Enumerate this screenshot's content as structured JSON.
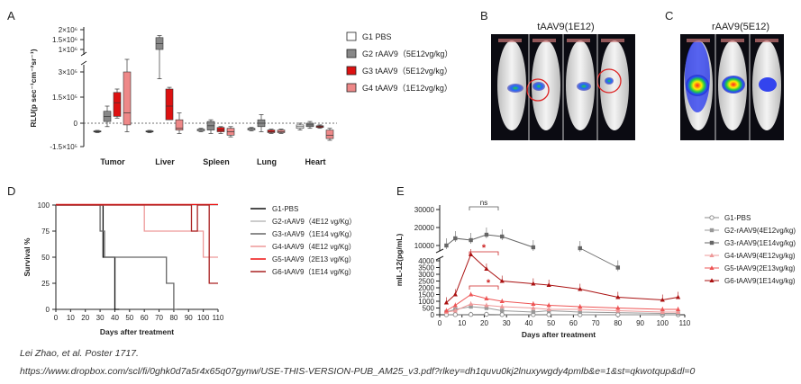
{
  "panels": {
    "A": "A",
    "B": "B",
    "C": "C",
    "D": "D",
    "E": "E"
  },
  "chart_data": [
    {
      "type": "box",
      "panel": "A",
      "ylabel": "RLU(p sec⁻¹cm⁻²sr⁻¹)",
      "yticks_upper": [
        "2×10⁶",
        "1.5×10⁶",
        "1×10⁶"
      ],
      "yticks_lower": [
        "3×10⁵",
        "1.5×10⁵",
        "0",
        "-1.5×10⁵"
      ],
      "categories": [
        "Tumor",
        "Liver",
        "Spleen",
        "Lung",
        "Heart"
      ],
      "series": [
        {
          "name": "G1 PBS",
          "color": "#ffffff",
          "boxes": [
            [
              -55000,
              -50000,
              -48000,
              -45000,
              -42000
            ],
            [
              -55000,
              -50000,
              -48000,
              -45000,
              -42000
            ],
            [
              -50000,
              -45000,
              -40000,
              -35000,
              -30000
            ],
            [
              -45000,
              -40000,
              -35000,
              -30000,
              -25000
            ],
            [
              -40000,
              -30000,
              -20000,
              -10000,
              0
            ]
          ]
        },
        {
          "name": "G2 rAAV9（5E12vg/kg）",
          "color": "#888888",
          "boxes": [
            [
              -20000,
              10000,
              40000,
              70000,
              100000
            ],
            [
              260000,
              1000000,
              1300000,
              1600000,
              1700000
            ],
            [
              -60000,
              -40000,
              -15000,
              10000,
              20000
            ],
            [
              -50000,
              -20000,
              0,
              20000,
              50000
            ],
            [
              -30000,
              -20000,
              -10000,
              0,
              10000
            ]
          ]
        },
        {
          "name": "G3 tAAV9（5E12vg/kg）",
          "color": "#dd1111",
          "boxes": [
            [
              30000,
              40000,
              120000,
              180000,
              200000
            ],
            [
              60000,
              20000,
              100000,
              200000,
              210000
            ],
            [
              -60000,
              -50000,
              -40000,
              -25000,
              -20000
            ],
            [
              -60000,
              -55000,
              -50000,
              -40000,
              -35000
            ],
            [
              -30000,
              -25000,
              -20000,
              -15000,
              -10000
            ]
          ]
        },
        {
          "name": "G4 tAAV9（1E12vg/kg）",
          "color": "#ee8888",
          "boxes": [
            [
              -50000,
              -10000,
              60000,
              300000,
              320000
            ],
            [
              -60000,
              -40000,
              -30000,
              20000,
              60000
            ],
            [
              -80000,
              -70000,
              -50000,
              -30000,
              -20000
            ],
            [
              -60000,
              -55000,
              -50000,
              -40000,
              -35000
            ],
            [
              -100000,
              -90000,
              -70000,
              -40000,
              -30000
            ]
          ]
        }
      ]
    },
    {
      "type": "line",
      "panel": "D",
      "title": "",
      "xlabel": "Days after treatment",
      "ylabel": "Survival %",
      "xlim": [
        0,
        110
      ],
      "ylim": [
        0,
        100
      ],
      "xticks": [
        0,
        10,
        20,
        30,
        40,
        50,
        60,
        70,
        80,
        90,
        100,
        110
      ],
      "yticks": [
        0,
        25,
        50,
        75,
        100
      ],
      "series": [
        {
          "name": "G1-PBS",
          "color": "#111111",
          "steps": [
            [
              0,
              100
            ],
            [
              32,
              100
            ],
            [
              32,
              50
            ],
            [
              40,
              50
            ],
            [
              40,
              0
            ],
            [
              43,
              0
            ]
          ]
        },
        {
          "name": "G2-rAAV9（4E12 vg/Kg）",
          "color": "#bbbbbb",
          "steps": [
            [
              0,
              100
            ],
            [
              110,
              100
            ]
          ]
        },
        {
          "name": "G3-rAAV9（1E14 vg/Kg）",
          "color": "#666666",
          "steps": [
            [
              0,
              100
            ],
            [
              30,
              100
            ],
            [
              30,
              75
            ],
            [
              33,
              75
            ],
            [
              33,
              50
            ],
            [
              75,
              50
            ],
            [
              75,
              25
            ],
            [
              80,
              25
            ],
            [
              80,
              0
            ],
            [
              82,
              0
            ]
          ]
        },
        {
          "name": "G4-tAAV9（4E12 vg/Kg）",
          "color": "#ee9999",
          "steps": [
            [
              0,
              100
            ],
            [
              60,
              100
            ],
            [
              60,
              75
            ],
            [
              100,
              75
            ],
            [
              100,
              50
            ],
            [
              110,
              50
            ]
          ]
        },
        {
          "name": "G5-tAAV9（2E13 vg/Kg）",
          "color": "#ee1111",
          "steps": [
            [
              0,
              100
            ],
            [
              110,
              100
            ]
          ]
        },
        {
          "name": "G6-tAAV9（1E14 vg/Kg）",
          "color": "#aa2222",
          "steps": [
            [
              0,
              100
            ],
            [
              92,
              100
            ],
            [
              92,
              75
            ],
            [
              96,
              75
            ],
            [
              96,
              100
            ],
            [
              104,
              100
            ],
            [
              104,
              25
            ],
            [
              110,
              25
            ]
          ]
        }
      ]
    },
    {
      "type": "line",
      "panel": "E",
      "xlabel": "Days after treatment",
      "ylabel": "mIL-12(pg/mL)",
      "xticks": [
        0,
        10,
        20,
        30,
        40,
        50,
        60,
        70,
        80,
        90,
        100,
        110
      ],
      "yticks_upper": [
        10000,
        20000,
        30000
      ],
      "yticks_lower": [
        0,
        500,
        1000,
        1500,
        2000,
        2500,
        3000,
        3500,
        4000
      ],
      "annotations": {
        "ns": "ns",
        "star1": "*",
        "star2": "*"
      },
      "series": [
        {
          "name": "G1-PBS",
          "color": "#888888",
          "marker": "circle-open",
          "x": [
            3,
            7,
            14,
            21,
            28,
            42,
            49,
            63,
            80,
            100,
            107
          ],
          "y": [
            0,
            10,
            20,
            30,
            10,
            10,
            10,
            0,
            0,
            0,
            0
          ]
        },
        {
          "name": "G2-rAAV9(4E12vg/kg)",
          "color": "#999999",
          "marker": "square",
          "x": [
            3,
            7,
            14,
            21,
            28,
            42,
            49,
            63,
            100,
            107
          ],
          "y": [
            200,
            400,
            600,
            500,
            300,
            200,
            300,
            200,
            100,
            100
          ]
        },
        {
          "name": "G3-rAAV9(1E14vg/kg)",
          "color": "#666666",
          "marker": "square",
          "x": [
            3,
            7,
            14,
            21,
            28,
            42,
            63,
            80
          ],
          "y": [
            10000,
            14000,
            13000,
            16000,
            15000,
            9000,
            8500,
            3500
          ]
        },
        {
          "name": "G4-tAAV9(4E12vg/kg)",
          "color": "#ee9999",
          "marker": "triangle",
          "x": [
            3,
            7,
            14,
            21,
            28,
            42,
            49,
            63,
            80,
            100,
            107
          ],
          "y": [
            200,
            300,
            800,
            700,
            600,
            500,
            400,
            400,
            300,
            200,
            200
          ]
        },
        {
          "name": "G5-tAAV9(2E13vg/kg)",
          "color": "#ee5555",
          "marker": "triangle",
          "x": [
            3,
            7,
            14,
            21,
            28,
            42,
            49,
            63,
            80,
            100,
            107
          ],
          "y": [
            300,
            700,
            1500,
            1200,
            1000,
            800,
            700,
            600,
            500,
            400,
            400
          ]
        },
        {
          "name": "G6-tAAV9(1E14vg/kg)",
          "color": "#aa1111",
          "marker": "triangle",
          "x": [
            3,
            7,
            14,
            21,
            28,
            42,
            49,
            63,
            80,
            100,
            107
          ],
          "y": [
            900,
            1500,
            4600,
            3400,
            2500,
            2300,
            2200,
            1900,
            1300,
            1100,
            1300
          ]
        }
      ]
    }
  ],
  "panelB": {
    "title": "tAAV9(1E12)"
  },
  "panelC": {
    "title": "rAAV9(5E12)"
  },
  "citation": {
    "line1": "Lei Zhao, et al. Poster 1717.",
    "line2": "https://www.dropbox.com/scl/fi/0ghk0d7a5r4x65q07gynw/USE-THIS-VERSION-PUB_AM25_v3.pdf?rlkey=dh1quvu0kj2lnuxywgdy4pmlb&e=1&st=qkwotqup&dl=0"
  }
}
